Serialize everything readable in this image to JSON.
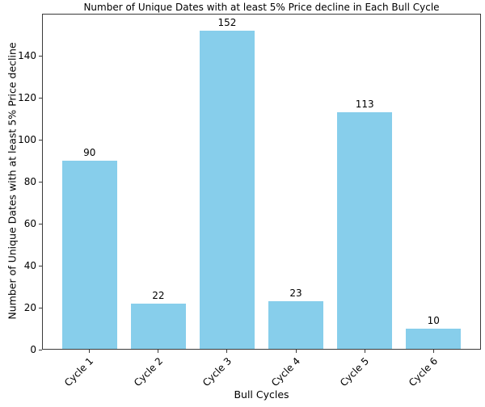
{
  "chart_data": {
    "type": "bar",
    "title": "Number of Unique Dates with at least 5% Price decline in Each Bull Cycle",
    "xlabel": "Bull Cycles",
    "ylabel": "Number of Unique Dates with at least 5% Price decline",
    "categories": [
      "Cycle 1",
      "Cycle 2",
      "Cycle 3",
      "Cycle 4",
      "Cycle 5",
      "Cycle 6"
    ],
    "values": [
      90,
      22,
      152,
      23,
      113,
      10
    ],
    "bar_labels": [
      "90",
      "22",
      "152",
      "23",
      "113",
      "10"
    ],
    "yticks": [
      0,
      20,
      40,
      60,
      80,
      100,
      120,
      140
    ],
    "ylim": [
      0,
      160
    ],
    "x_tick_rotation": 45,
    "grid": false,
    "legend": null,
    "bar_color": "#87CEEB",
    "axis_color": "#3a3a3a",
    "text_color": "#000000",
    "background_color": "#ffffff"
  }
}
